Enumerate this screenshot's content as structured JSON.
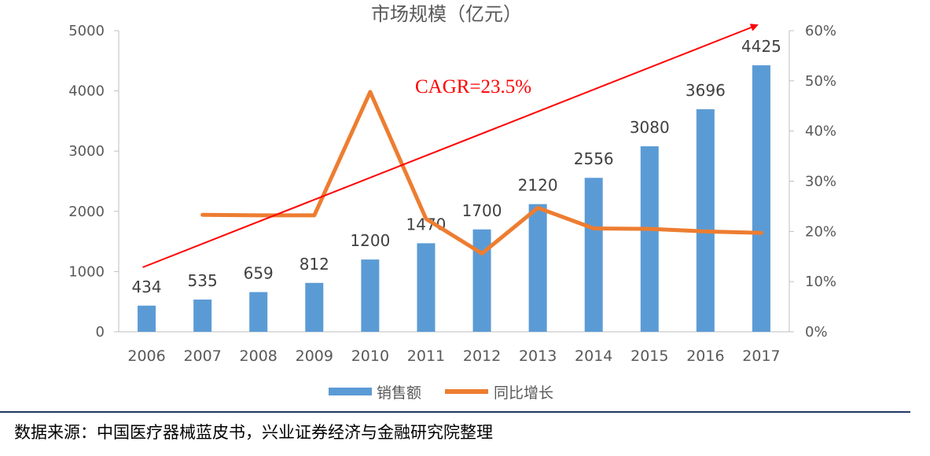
{
  "chart_data": {
    "type": "bar",
    "title": "市场规模（亿元）",
    "categories": [
      "2006",
      "2007",
      "2008",
      "2009",
      "2010",
      "2011",
      "2012",
      "2013",
      "2014",
      "2015",
      "2016",
      "2017"
    ],
    "series": [
      {
        "name": "销售额",
        "type": "bar",
        "axis": "left",
        "values": [
          434,
          535,
          659,
          812,
          1200,
          1470,
          1700,
          2120,
          2556,
          3080,
          3696,
          4425
        ],
        "color": "#5B9BD5"
      },
      {
        "name": "同比增长",
        "type": "line",
        "axis": "right",
        "values": [
          null,
          23.3,
          23.2,
          23.2,
          47.8,
          22.5,
          15.6,
          24.7,
          20.6,
          20.5,
          20.0,
          19.7
        ],
        "color": "#ED7D31"
      }
    ],
    "y_left": {
      "min": 0,
      "max": 5000,
      "ticks": [
        "0",
        "1000",
        "2000",
        "3000",
        "4000",
        "5000"
      ]
    },
    "y_right": {
      "min": 0,
      "max": 60,
      "ticks": [
        "0%",
        "10%",
        "20%",
        "30%",
        "40%",
        "50%",
        "60%"
      ]
    },
    "trend_arrow": {
      "label": "CAGR=23.5%",
      "color": "#FF0000"
    },
    "legend_position": "bottom",
    "grid": false
  },
  "source": "数据来源：中国医疗器械蓝皮书，兴业证券经济与金融研究院整理"
}
